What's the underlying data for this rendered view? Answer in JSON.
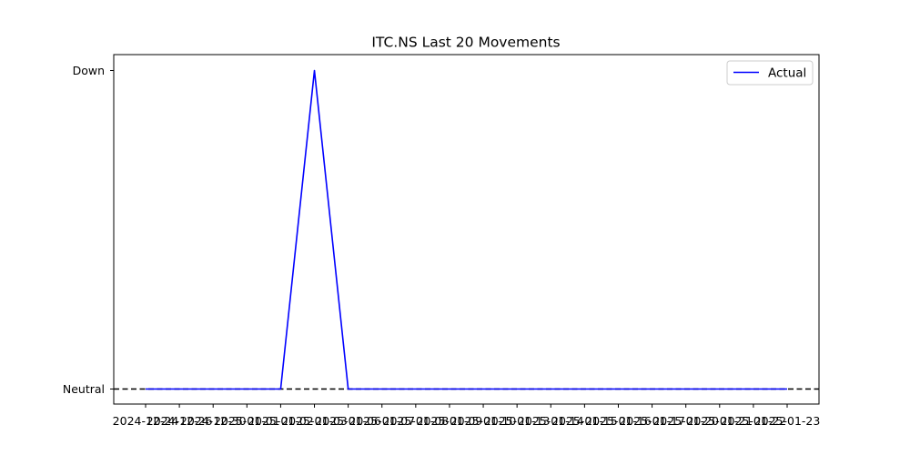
{
  "chart_data": {
    "type": "line",
    "title": "ITC.NS Last 20 Movements",
    "xlabel": "",
    "ylabel": "",
    "categories": [
      "2024-12-24",
      "2024-12-26",
      "2024-12-30",
      "2025-01-01",
      "2025-01-02",
      "2025-01-03",
      "2025-01-06",
      "2025-01-07",
      "2025-01-08",
      "2025-01-09",
      "2025-01-10",
      "2025-01-13",
      "2025-01-14",
      "2025-01-15",
      "2025-01-16",
      "2025-01-17",
      "2025-01-20",
      "2025-01-21",
      "2025-01-22",
      "2025-01-23"
    ],
    "y_categories": [
      "Neutral",
      "Down"
    ],
    "series": [
      {
        "name": "Actual",
        "color": "#0000ff",
        "values": [
          "Neutral",
          "Neutral",
          "Neutral",
          "Neutral",
          "Neutral",
          "Down",
          "Neutral",
          "Neutral",
          "Neutral",
          "Neutral",
          "Neutral",
          "Neutral",
          "Neutral",
          "Neutral",
          "Neutral",
          "Neutral",
          "Neutral",
          "Neutral",
          "Neutral",
          "Neutral"
        ]
      }
    ],
    "reference_line": {
      "value": "Neutral",
      "style": "dashed",
      "color": "#000000"
    },
    "grid": false,
    "legend_position": "top-right"
  }
}
